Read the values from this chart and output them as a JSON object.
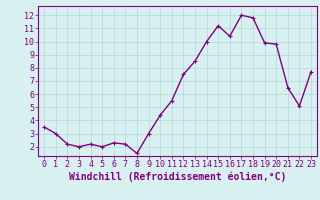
{
  "x": [
    0,
    1,
    2,
    3,
    4,
    5,
    6,
    7,
    8,
    9,
    10,
    11,
    12,
    13,
    14,
    15,
    16,
    17,
    18,
    19,
    20,
    21,
    22,
    23
  ],
  "y": [
    3.5,
    3.0,
    2.2,
    2.0,
    2.2,
    2.0,
    2.3,
    2.2,
    1.5,
    3.0,
    4.4,
    5.5,
    7.5,
    8.5,
    10.0,
    11.2,
    10.4,
    12.0,
    11.8,
    9.9,
    9.8,
    6.5,
    5.1,
    7.7
  ],
  "line_color": "#800080",
  "marker": "+",
  "marker_size": 3,
  "bg_color": "#d8f0f0",
  "grid_color": "#b0d8d8",
  "xlabel": "Windchill (Refroidissement éolien,°C)",
  "xlabel_fontsize": 7,
  "ylabel_ticks": [
    2,
    3,
    4,
    5,
    6,
    7,
    8,
    9,
    10,
    11,
    12
  ],
  "xticks": [
    0,
    1,
    2,
    3,
    4,
    5,
    6,
    7,
    8,
    9,
    10,
    11,
    12,
    13,
    14,
    15,
    16,
    17,
    18,
    19,
    20,
    21,
    22,
    23
  ],
  "ylim": [
    1.3,
    12.7
  ],
  "xlim": [
    -0.5,
    23.5
  ],
  "tick_fontsize": 6,
  "axis_color": "#800080",
  "spine_color": "#800080",
  "linewidth": 1.0,
  "marker_edge_width": 0.8
}
